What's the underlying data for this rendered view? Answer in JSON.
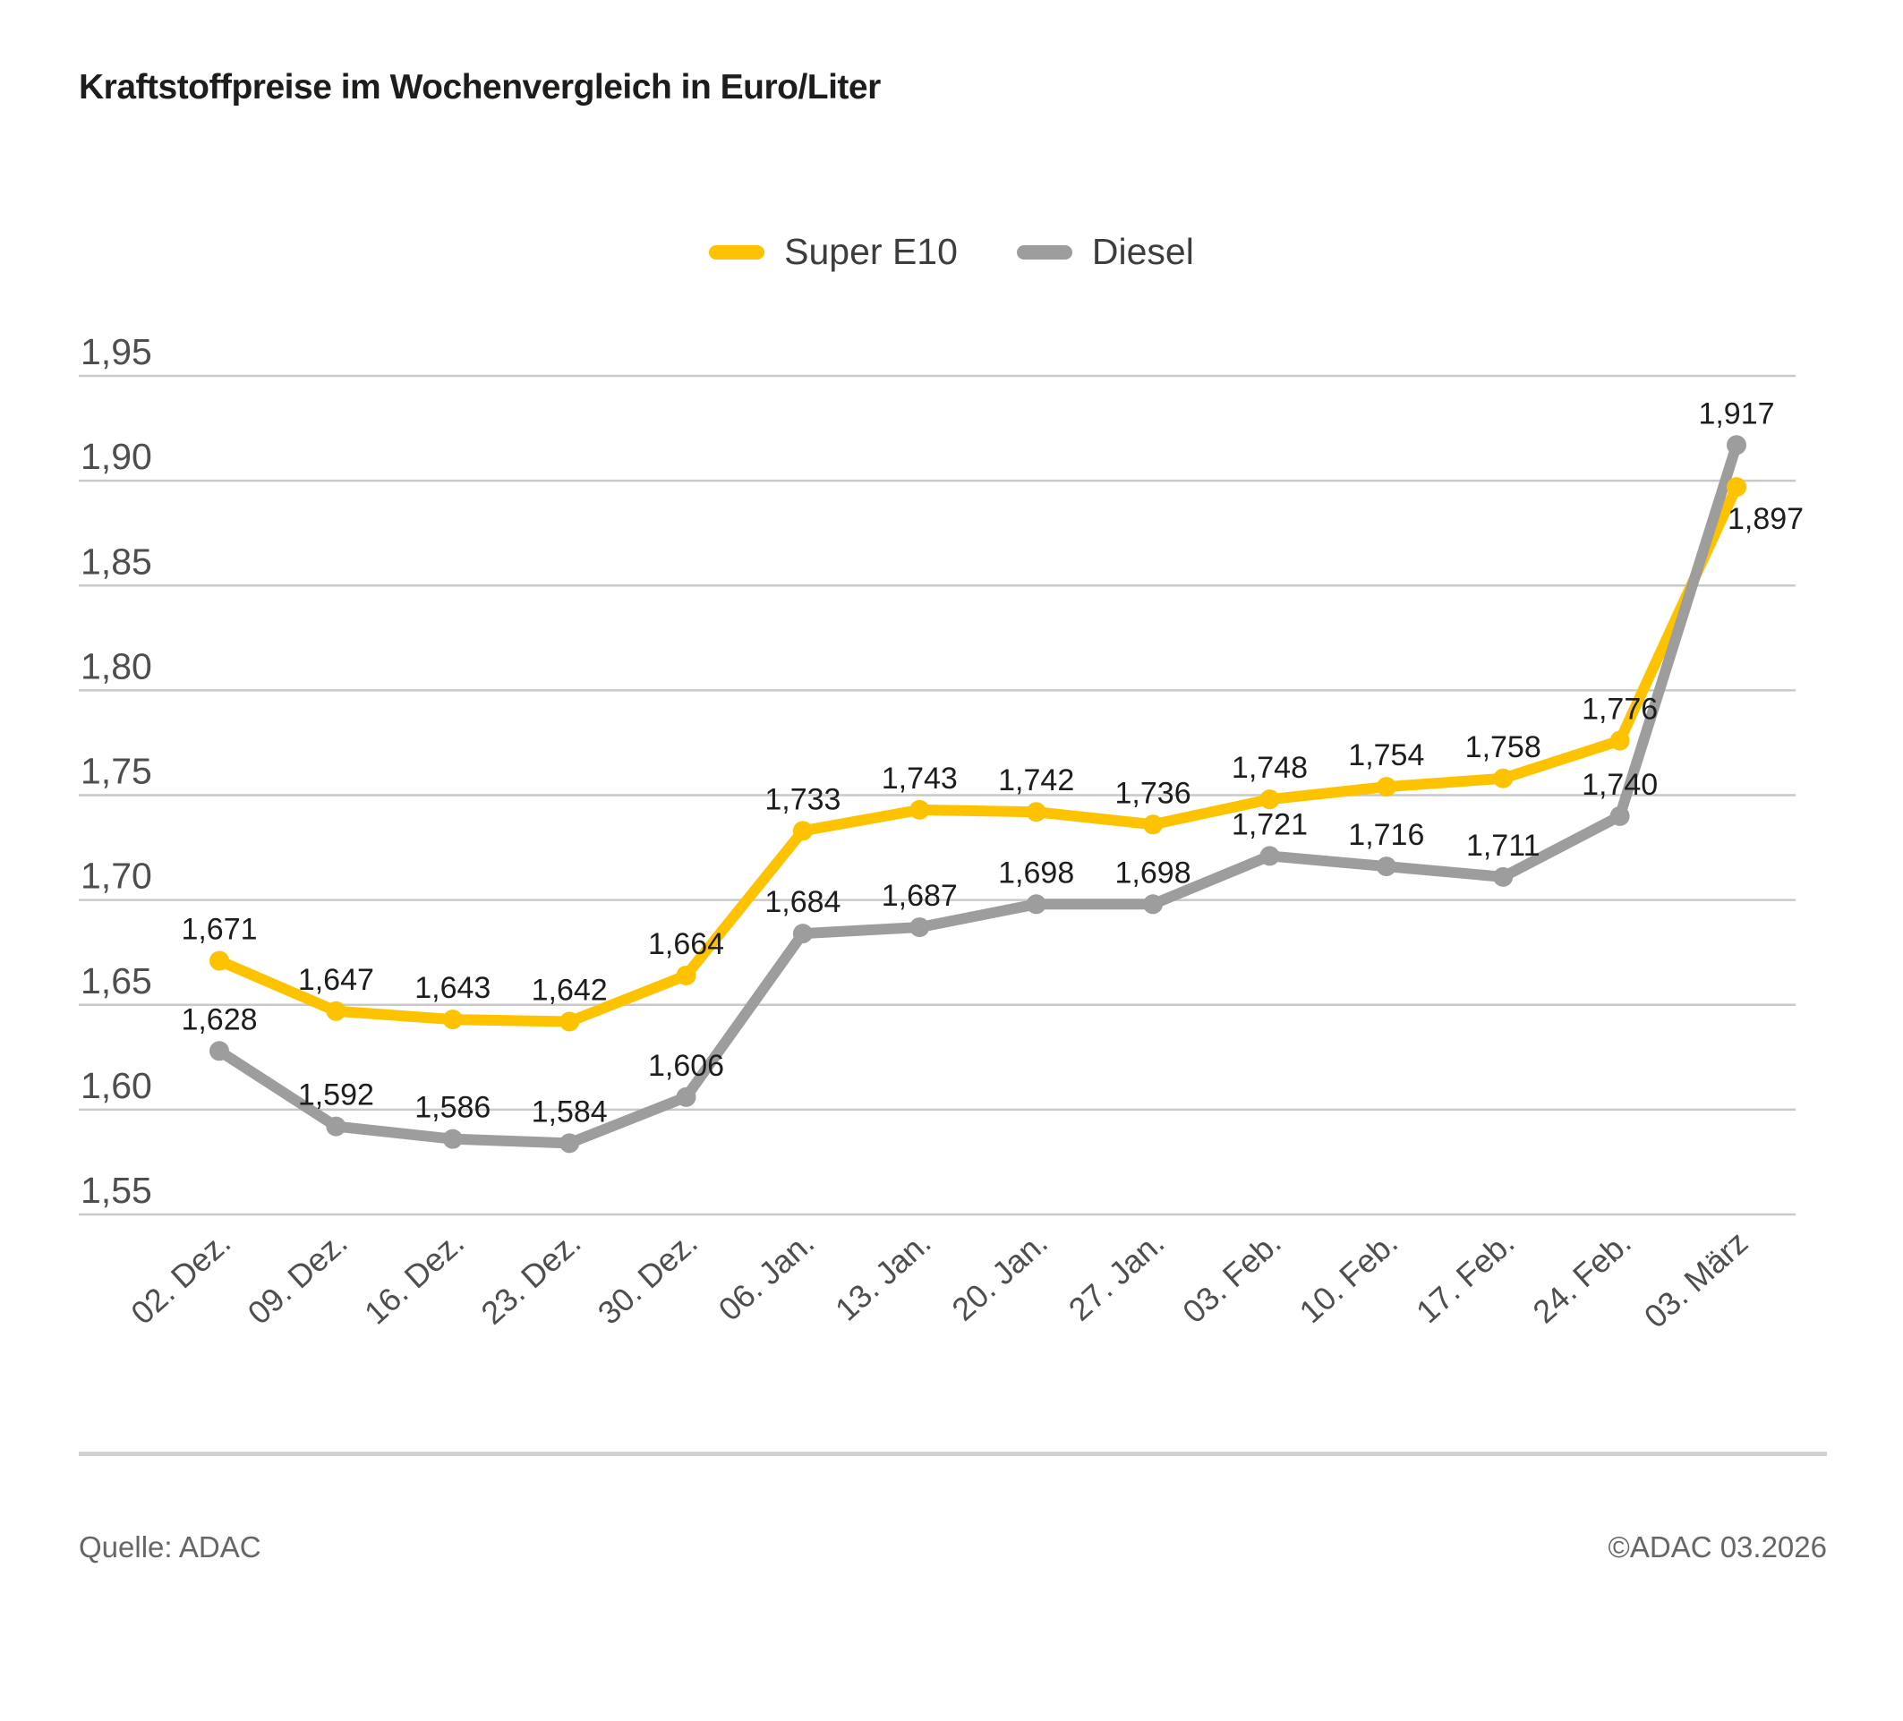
{
  "title": "Kraftstoffpreise im Wochenvergleich in Euro/Liter",
  "footer": {
    "source": "Quelle: ADAC",
    "copyright": "©ADAC 03.2026"
  },
  "chart_data": {
    "type": "line",
    "title": "Kraftstoffpreise im Wochenvergleich in Euro/Liter",
    "unit": "Euro/Liter",
    "categories": [
      "02. Dez.",
      "09. Dez.",
      "16. Dez.",
      "23. Dez.",
      "30. Dez.",
      "06. Jan.",
      "13. Jan.",
      "20. Jan.",
      "27. Jan.",
      "03. Feb.",
      "10. Feb.",
      "17. Feb.",
      "24. Feb.",
      "03. März"
    ],
    "series": [
      {
        "name": "Super E10",
        "color": "#FDC300",
        "values": [
          1.671,
          1.647,
          1.643,
          1.642,
          1.664,
          1.733,
          1.743,
          1.742,
          1.736,
          1.748,
          1.754,
          1.758,
          1.776,
          1.897
        ],
        "label_overrides": {
          "13": {
            "dx": -10,
            "dy": 47,
            "anchor": "start"
          }
        }
      },
      {
        "name": "Diesel",
        "color": "#9D9D9D",
        "values": [
          1.628,
          1.592,
          1.586,
          1.584,
          1.606,
          1.684,
          1.687,
          1.698,
          1.698,
          1.721,
          1.716,
          1.711,
          1.74,
          1.917
        ],
        "label_overrides": {}
      }
    ],
    "y_ticks": [
      1.95,
      1.9,
      1.85,
      1.8,
      1.75,
      1.7,
      1.65,
      1.6,
      1.55
    ],
    "ylim": [
      1.55,
      1.95
    ],
    "decimal_separator": ",",
    "grid": true,
    "legend_position": "top-center",
    "colors": {
      "grid_line": "#c9c9c9",
      "tick_label": "#4e4e4e",
      "data_label": "#1d1d1b"
    }
  }
}
